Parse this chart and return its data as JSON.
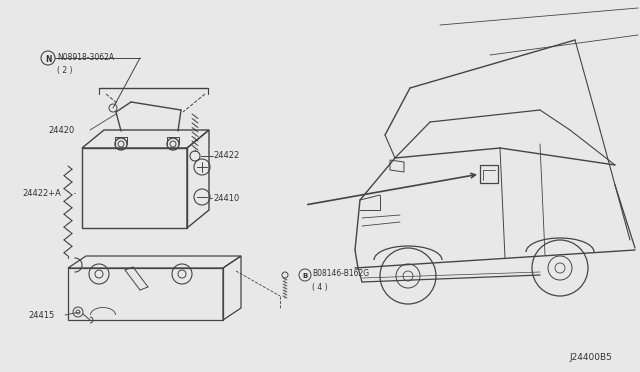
{
  "bg_color": "#e8e8e8",
  "line_color": "#444444",
  "text_color": "#333333",
  "footer": "J24400B5",
  "parts": {
    "nut_label": "N08918-3062A",
    "nut_label2": "( 2 )",
    "clamp_pos_label": "24420",
    "clamp_neg_label": "24422+A",
    "battery_label": "24410",
    "bolt_label": "24422",
    "tray_label": "24415",
    "screw_label": "B08146-B162G",
    "screw_label2": "( 4 )"
  }
}
